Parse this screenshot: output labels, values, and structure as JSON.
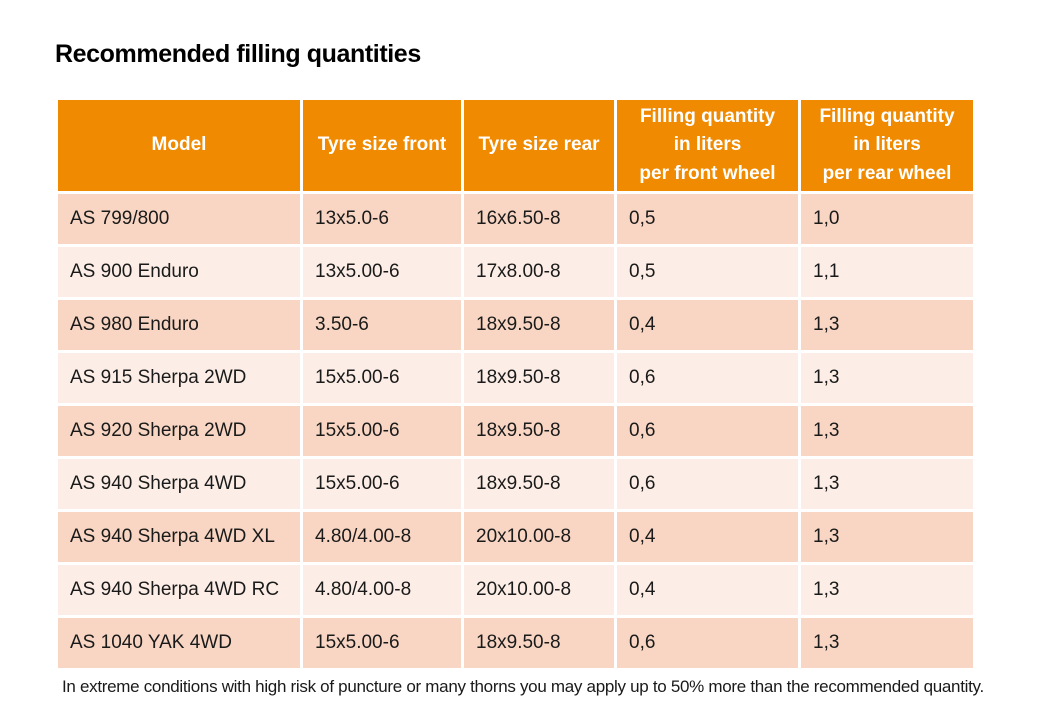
{
  "page": {
    "title": "Recommended filling quantities",
    "footnote": "In extreme conditions with high risk of puncture or many thorns you may apply up to 50% more than the recommended quantity."
  },
  "table": {
    "columns": [
      "Model",
      "Tyre size front",
      "Tyre size rear",
      "Filling quantity\nin liters\nper front wheel",
      "Filling quantity\nin liters\nper rear wheel"
    ],
    "rows": [
      [
        "AS 799/800",
        "13x5.0-6",
        "16x6.50-8",
        "0,5",
        "1,0"
      ],
      [
        "AS 900 Enduro",
        "13x5.00-6",
        "17x8.00-8",
        "0,5",
        "1,1"
      ],
      [
        "AS 980 Enduro",
        "3.50-6",
        "18x9.50-8",
        "0,4",
        "1,3"
      ],
      [
        "AS 915 Sherpa 2WD",
        "15x5.00-6",
        "18x9.50-8",
        "0,6",
        "1,3"
      ],
      [
        "AS 920 Sherpa 2WD",
        "15x5.00-6",
        "18x9.50-8",
        "0,6",
        "1,3"
      ],
      [
        "AS 940 Sherpa 4WD",
        "15x5.00-6",
        "18x9.50-8",
        "0,6",
        "1,3"
      ],
      [
        "AS 940 Sherpa 4WD XL",
        "4.80/4.00-8",
        "20x10.00-8",
        "0,4",
        "1,3"
      ],
      [
        "AS 940 Sherpa 4WD RC",
        "4.80/4.00-8",
        "20x10.00-8",
        "0,4",
        "1,3"
      ],
      [
        "AS 1040 YAK 4WD",
        "15x5.00-6",
        "18x9.50-8",
        "0,6",
        "1,3"
      ]
    ],
    "colors": {
      "header_bg": "#F08A00",
      "header_text": "#FFFFFF",
      "row_odd_bg": "#F8D6C3",
      "row_even_bg": "#FCEEE6",
      "body_text": "#1A1A1A",
      "grid": "#FFFFFF"
    }
  }
}
